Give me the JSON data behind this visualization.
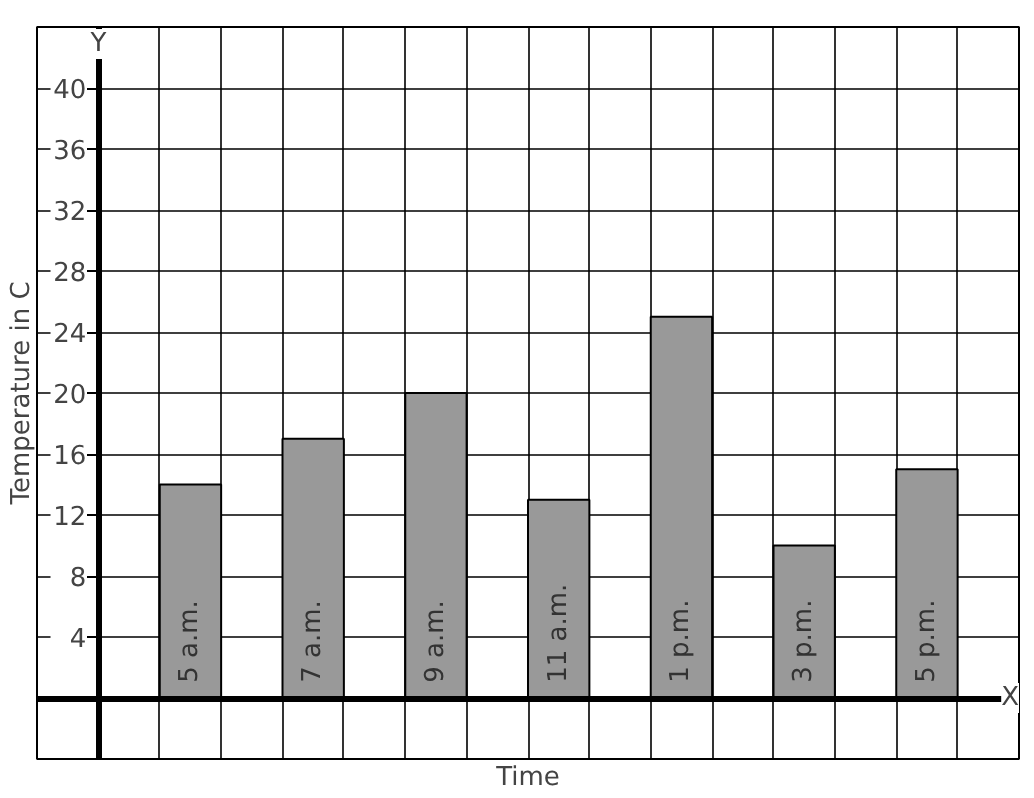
{
  "chart_data": {
    "type": "bar",
    "xlabel": "Time",
    "ylabel": "Temperature in C",
    "categories": [
      "5 a.m.",
      "7 a.m.",
      "9 a.m.",
      "11 a.m.",
      "1 p.m.",
      "3 p.m.",
      "5 p.m."
    ],
    "values": [
      14,
      17,
      20,
      13,
      25,
      10,
      15
    ],
    "color": "#999999",
    "ylim": [
      -4,
      44
    ],
    "yticks": [
      4,
      8,
      12,
      16,
      20,
      24,
      28,
      32,
      36,
      40
    ],
    "grid": true,
    "annotations": [
      "Y",
      "X"
    ]
  }
}
